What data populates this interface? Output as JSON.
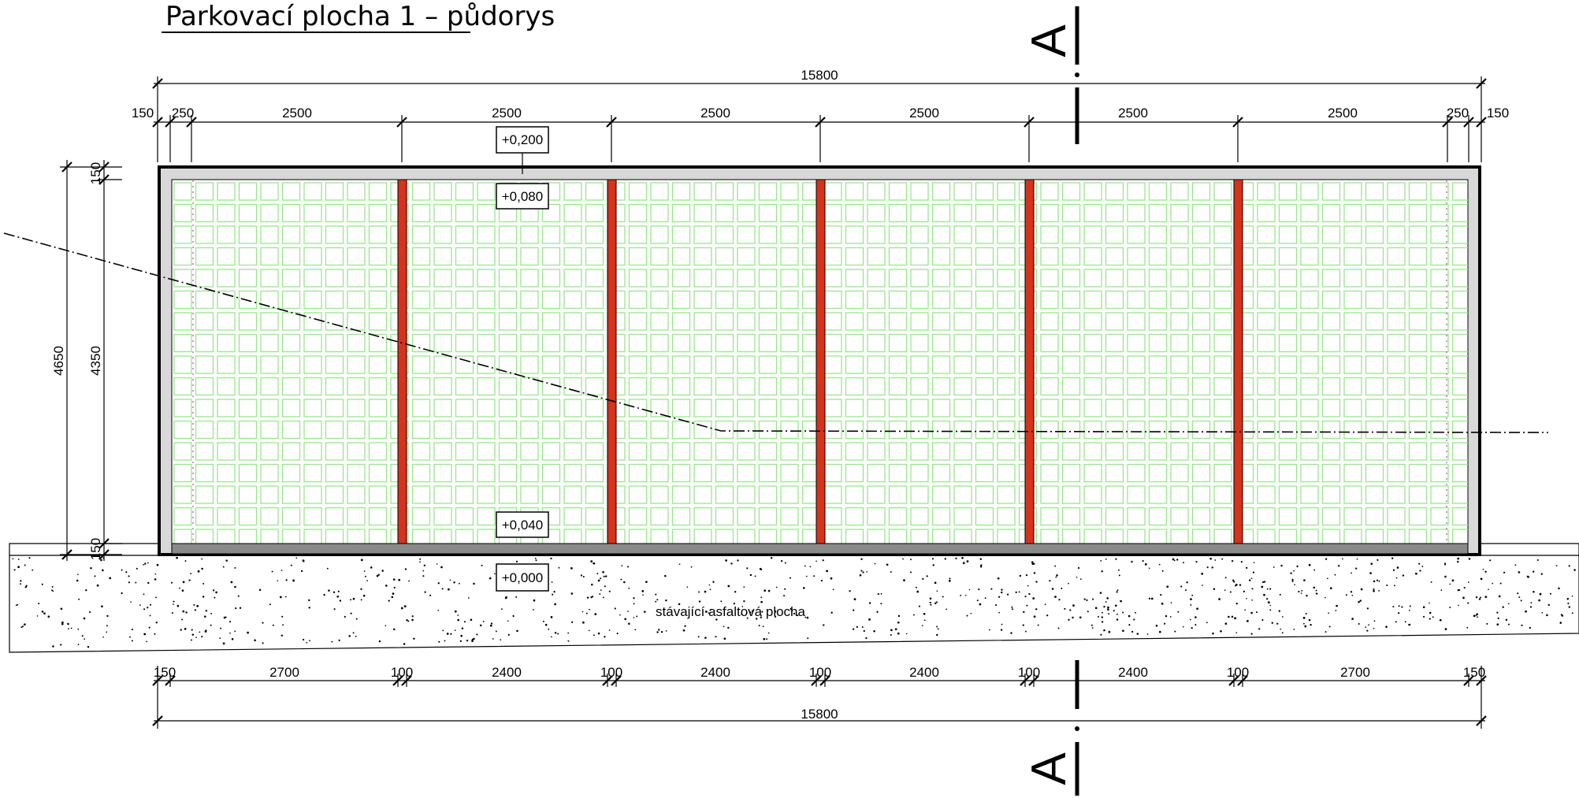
{
  "title": "Parkovací plocha 1 – půdorys",
  "section_mark": "A",
  "top_dims": {
    "overall": "15800",
    "edge_left": "150",
    "sub_left": "250",
    "bay": "2500",
    "sub_right": "250",
    "edge_right": "150"
  },
  "bottom_dims": {
    "overall": "15800",
    "edge": "150",
    "bay_outer": "2700",
    "bay_inner": "2400",
    "divider": "100"
  },
  "left_dims": {
    "overall": "4650",
    "inner": "4350",
    "edge_top": "150",
    "edge_bottom": "150"
  },
  "levels": {
    "top_edge": "+0,200",
    "top_inner": "+0,080",
    "bottom_inner": "+0,040",
    "ground": "+0,000"
  },
  "ground_label": "stávající asfaltová plocha",
  "colors": {
    "grid": "#9be58f",
    "divider": "#d6321c",
    "frame": "#d8d8d8",
    "bottom_band": "#8a8a8a"
  }
}
